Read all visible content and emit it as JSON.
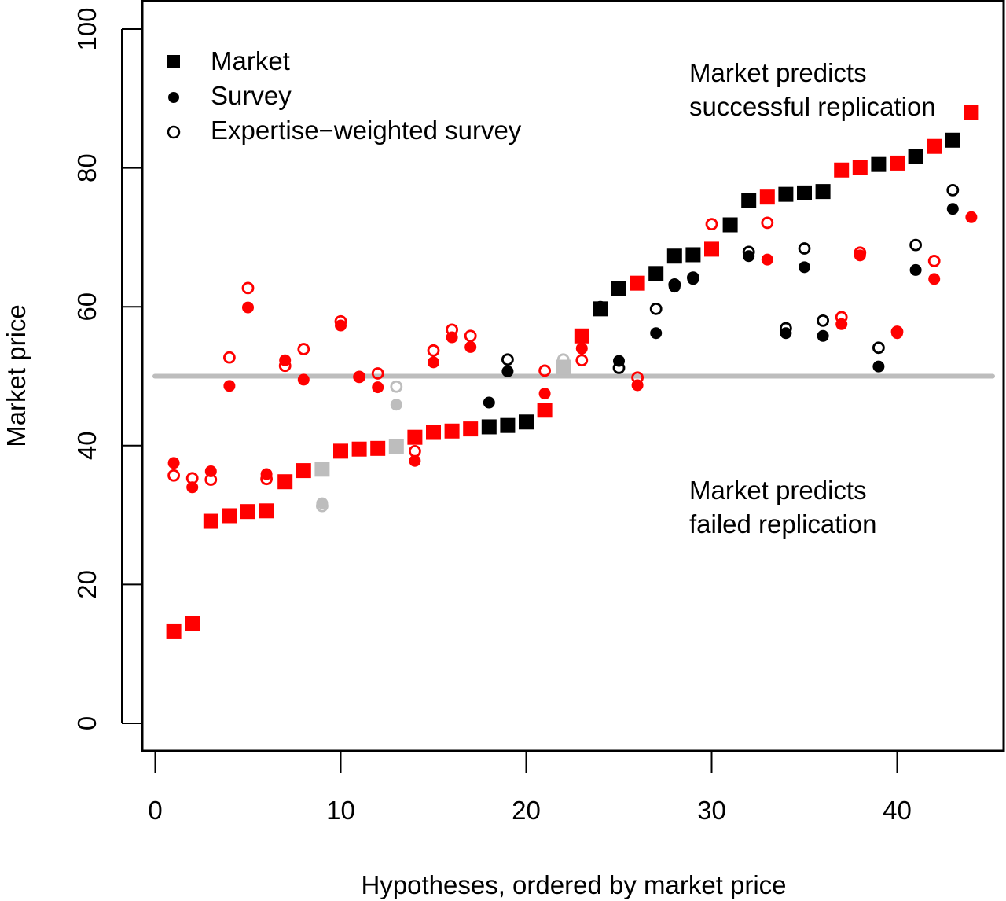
{
  "chart_data": {
    "type": "scatter",
    "title": "",
    "xlabel": "Hypotheses, ordered by market price",
    "ylabel": "Market price",
    "xlim": [
      0,
      45
    ],
    "ylim": [
      0,
      100
    ],
    "x_ticks": [
      0,
      10,
      20,
      30,
      40
    ],
    "y_ticks": [
      0,
      20,
      40,
      60,
      80,
      100
    ],
    "grid": false,
    "reference_line": {
      "y": 50,
      "color": "#bdbdbd"
    },
    "legend": {
      "position": "top-left",
      "entries": [
        {
          "label": "Market",
          "marker": "filled-square"
        },
        {
          "label": "Survey",
          "marker": "filled-circle"
        },
        {
          "label": "Expertise−weighted survey",
          "marker": "open-circle"
        }
      ]
    },
    "annotations": [
      {
        "lines": [
          "Market predicts",
          "successful replication"
        ],
        "position": "top-right"
      },
      {
        "lines": [
          "Market predicts",
          "failed replication"
        ],
        "position": "middle-right"
      }
    ],
    "color_key": {
      "red": "#ff0000",
      "black": "#000000",
      "gray": "#bdbdbd"
    },
    "series": [
      {
        "name": "Market",
        "marker": "filled-square",
        "values": [
          13.2,
          14.4,
          29.1,
          29.9,
          30.5,
          30.6,
          34.8,
          36.4,
          36.6,
          39.2,
          39.5,
          39.6,
          39.9,
          41.2,
          41.9,
          42.1,
          42.4,
          42.7,
          42.9,
          43.4,
          45.1,
          51.3,
          55.8,
          59.7,
          62.6,
          63.4,
          64.8,
          67.3,
          67.5,
          68.3,
          71.8,
          75.3,
          75.8,
          76.2,
          76.4,
          76.6,
          79.7,
          80.1,
          80.5,
          80.7,
          81.7,
          83.1,
          84.0,
          88.0
        ]
      },
      {
        "name": "Survey",
        "marker": "filled-circle",
        "values": [
          37.5,
          34.0,
          36.3,
          48.6,
          59.9,
          35.9,
          52.3,
          49.5,
          31.7,
          57.3,
          49.9,
          48.4,
          45.9,
          37.8,
          52.0,
          55.6,
          54.2,
          46.2,
          50.7,
          null,
          47.5,
          51.5,
          54.0,
          60.0,
          52.2,
          48.7,
          56.2,
          62.9,
          64.0,
          68.3,
          null,
          67.3,
          66.8,
          56.2,
          65.7,
          55.8,
          57.5,
          67.4,
          51.4,
          56.2,
          65.3,
          64.0,
          74.1,
          72.9
        ]
      },
      {
        "name": "Expertise−weighted survey",
        "marker": "open-circle",
        "values": [
          35.7,
          35.3,
          35.1,
          52.7,
          62.7,
          35.2,
          51.5,
          53.9,
          31.3,
          57.9,
          49.9,
          50.4,
          48.5,
          39.2,
          53.7,
          56.7,
          55.8,
          null,
          52.4,
          null,
          50.8,
          52.4,
          52.3,
          null,
          51.2,
          49.8,
          59.7,
          63.2,
          64.2,
          71.9,
          null,
          67.9,
          72.1,
          56.9,
          68.4,
          58.0,
          58.5,
          67.8,
          54.1,
          56.4,
          68.9,
          66.6,
          76.8,
          null
        ]
      }
    ],
    "x": [
      1,
      2,
      3,
      4,
      5,
      6,
      7,
      8,
      9,
      10,
      11,
      12,
      13,
      14,
      15,
      16,
      17,
      18,
      19,
      20,
      21,
      22,
      23,
      24,
      25,
      26,
      27,
      28,
      29,
      30,
      31,
      32,
      33,
      34,
      35,
      36,
      37,
      38,
      39,
      40,
      41,
      42,
      43,
      44
    ],
    "point_colors": [
      "red",
      "red",
      "red",
      "red",
      "red",
      "red",
      "red",
      "red",
      "gray",
      "red",
      "red",
      "red",
      "gray",
      "red",
      "red",
      "red",
      "red",
      "black",
      "black",
      "black",
      "red",
      "gray",
      "red",
      "black",
      "black",
      "red",
      "black",
      "black",
      "black",
      "red",
      "black",
      "black",
      "red",
      "black",
      "black",
      "black",
      "red",
      "red",
      "black",
      "red",
      "black",
      "red",
      "black",
      "red"
    ]
  }
}
